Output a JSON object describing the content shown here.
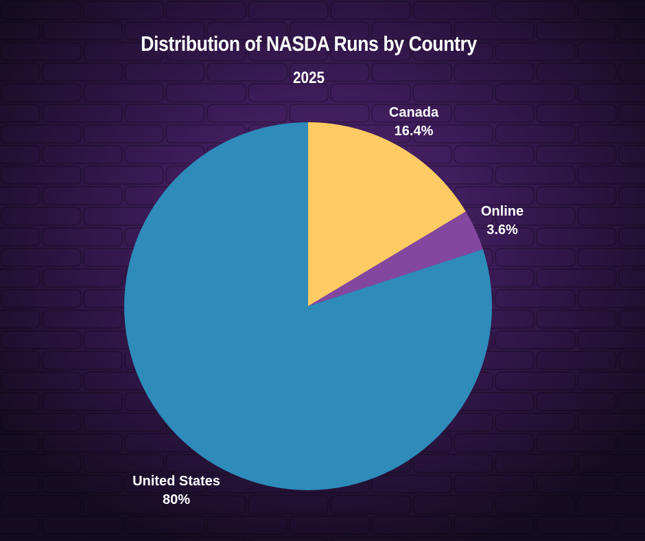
{
  "colors": {
    "background": "#1a0f2a",
    "glow": "#5a2a78",
    "title_text": "#ffffff"
  },
  "chart_data": {
    "type": "pie",
    "title": "Distribution of NASDA Runs by Country",
    "subtitle": "2025",
    "slices": [
      {
        "label": "Canada",
        "value": 16.4,
        "value_label": "16.4%",
        "color": "#fdcb63"
      },
      {
        "label": "Online",
        "value": 3.6,
        "value_label": "3.6%",
        "color": "#8347a0"
      },
      {
        "label": "United States",
        "value": 80,
        "value_label": "80%",
        "color": "#2e8bba"
      }
    ],
    "start_angle": "top",
    "direction": "clockwise"
  }
}
